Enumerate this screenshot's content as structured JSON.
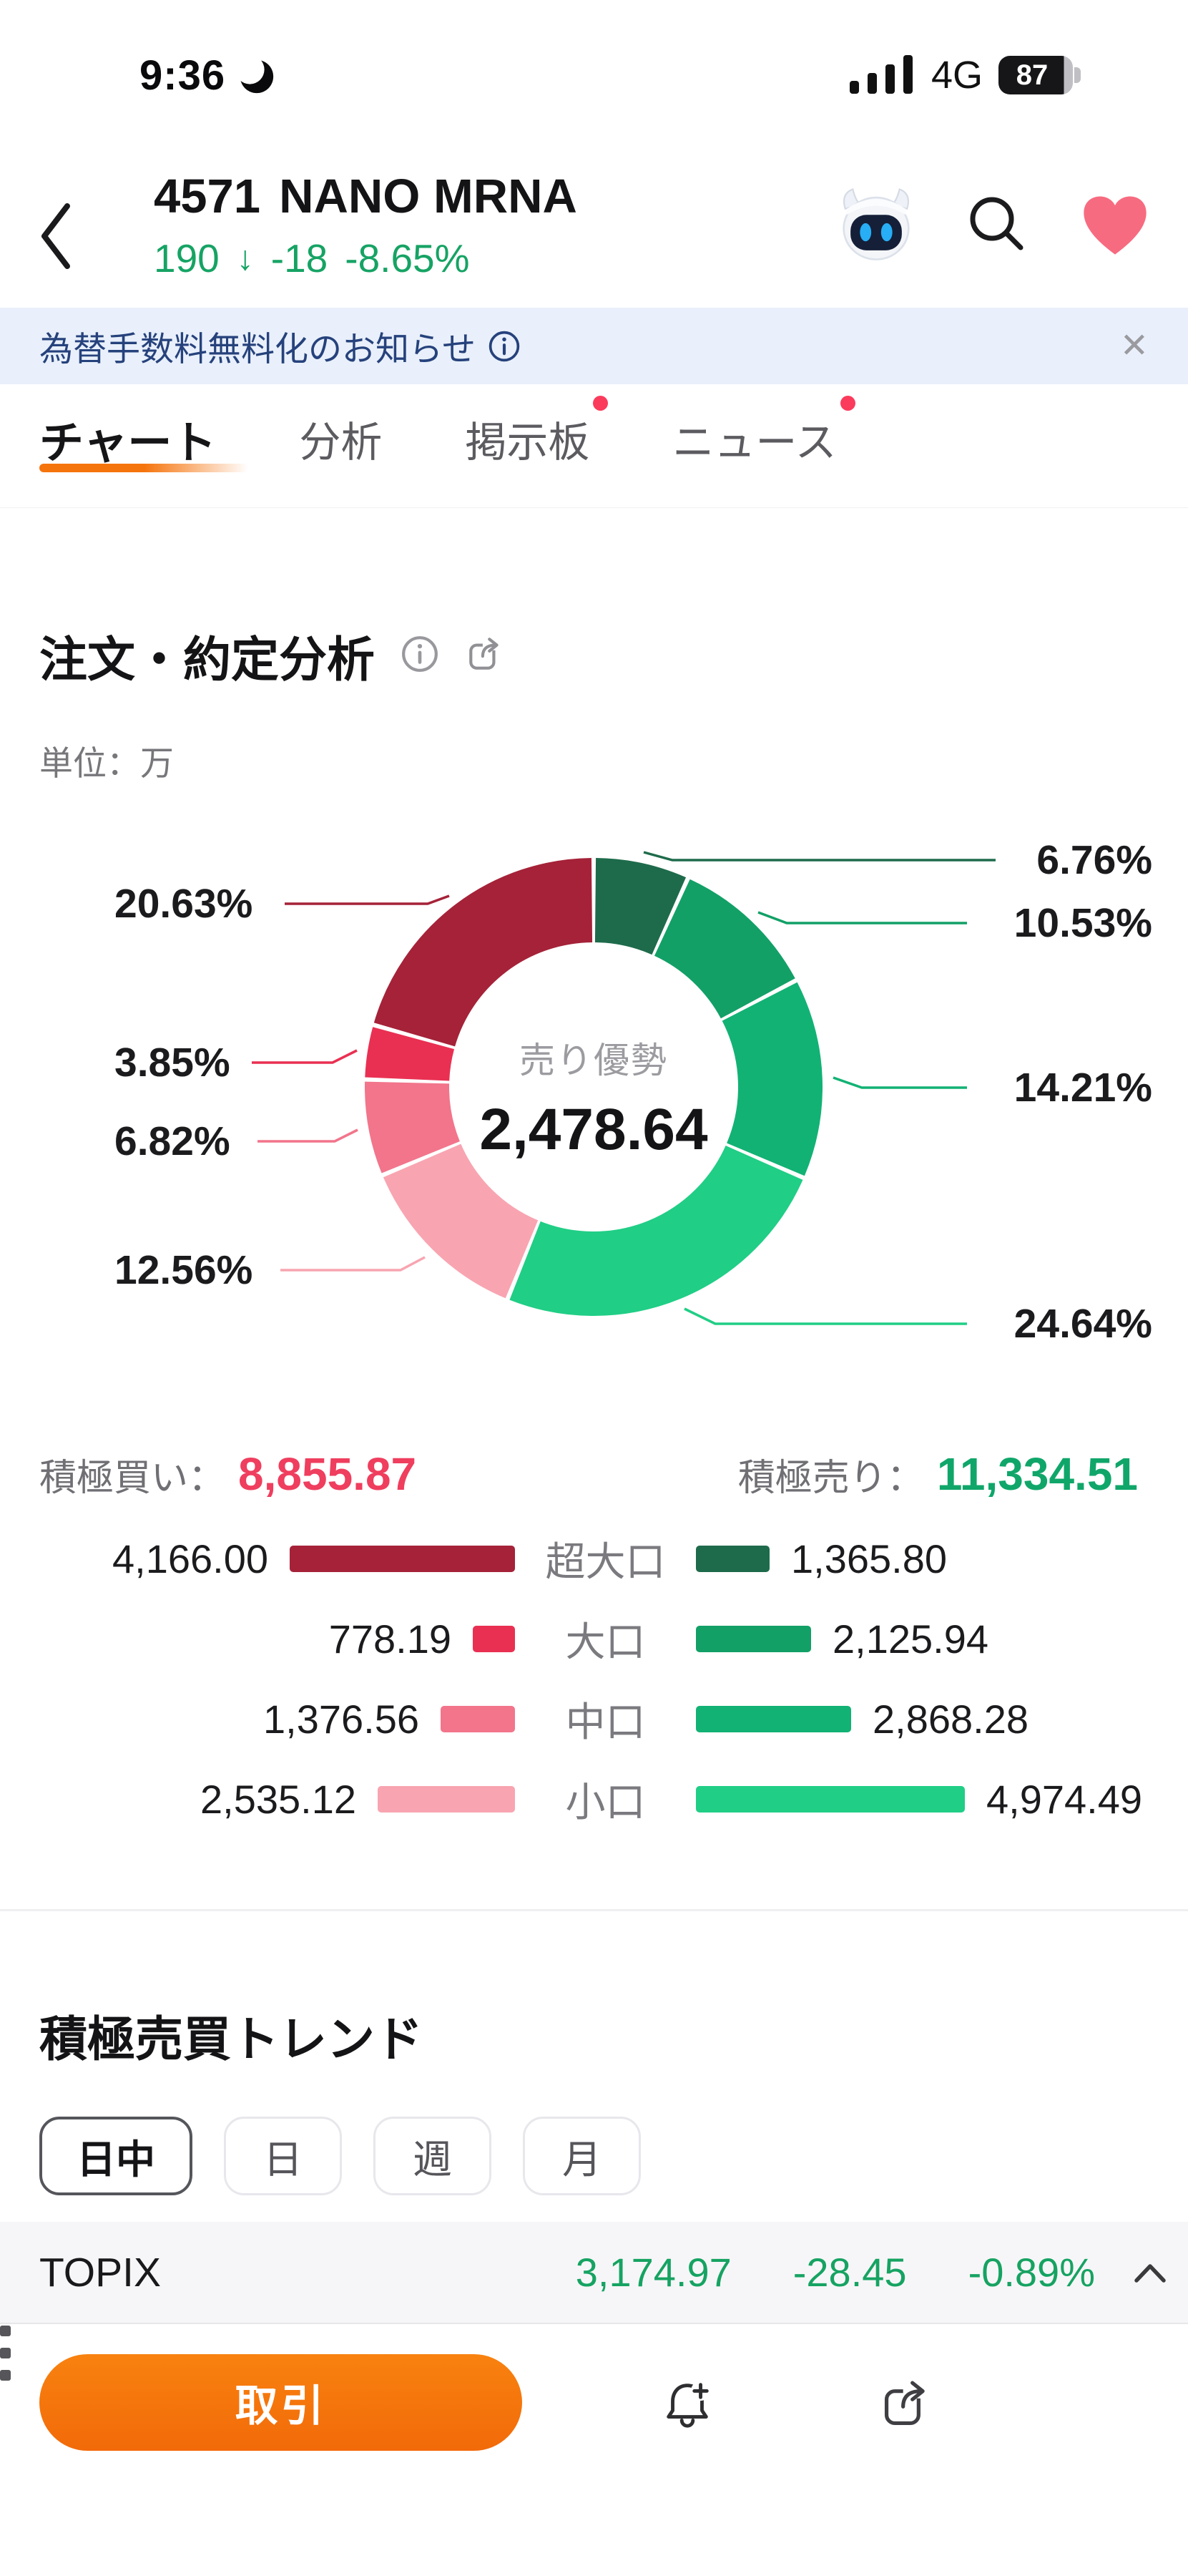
{
  "status_bar": {
    "time": "9:36",
    "network": "4G",
    "battery_pct": "87"
  },
  "header": {
    "code": "4571",
    "name": "NANO MRNA",
    "price": "190",
    "arrow": "↓",
    "change": "-18",
    "change_pct": "-8.65%"
  },
  "banner": {
    "text": "為替手数料無料化のお知らせ",
    "close": "✕"
  },
  "tabs": [
    {
      "label": "チャート",
      "active": true,
      "dot": false
    },
    {
      "label": "分析",
      "active": false,
      "dot": false
    },
    {
      "label": "掲示板",
      "active": false,
      "dot": true
    },
    {
      "label": "ニュース",
      "active": false,
      "dot": true
    }
  ],
  "analysis": {
    "title": "注文・約定分析",
    "unit": "単位：万",
    "buy_label": "積極買い：",
    "buy_total": "8,855.87",
    "sell_label": "積極売り：",
    "sell_total": "11,334.51"
  },
  "chart_data": {
    "type": "pie",
    "variant": "donut",
    "title": "注文・約定分析",
    "unit": "万",
    "center_label": "売り優勢",
    "center_value": "2,478.64",
    "start_angle_deg": -90,
    "direction": "clockwise",
    "segments": [
      {
        "name": "超大口売り",
        "pct": 6.76,
        "pct_label": "6.76%",
        "value": 1365.8,
        "color": "#1e6b4b"
      },
      {
        "name": "大口売り",
        "pct": 10.53,
        "pct_label": "10.53%",
        "value": 2125.94,
        "color": "#12a066"
      },
      {
        "name": "中口売り",
        "pct": 14.21,
        "pct_label": "14.21%",
        "value": 2868.28,
        "color": "#12b274"
      },
      {
        "name": "小口売り",
        "pct": 24.64,
        "pct_label": "24.64%",
        "value": 4974.49,
        "color": "#20ce85"
      },
      {
        "name": "小口買い",
        "pct": 12.56,
        "pct_label": "12.56%",
        "value": 2535.12,
        "color": "#f8a5b1"
      },
      {
        "name": "中口買い",
        "pct": 6.82,
        "pct_label": "6.82%",
        "value": 1376.56,
        "color": "#f2758b"
      },
      {
        "name": "大口買い",
        "pct": 3.85,
        "pct_label": "3.85%",
        "value": 778.19,
        "color": "#e93052"
      },
      {
        "name": "超大口買い",
        "pct": 20.63,
        "pct_label": "20.63%",
        "value": 4166.0,
        "color": "#a52238"
      }
    ]
  },
  "rows": [
    {
      "label": "超大口",
      "buy": "4,166.00",
      "buy_num": 4166.0,
      "buy_color": "#a52238",
      "sell": "1,365.80",
      "sell_num": 1365.8,
      "sell_color": "#1e6b4b"
    },
    {
      "label": "大口",
      "buy": "778.19",
      "buy_num": 778.19,
      "buy_color": "#e93052",
      "sell": "2,125.94",
      "sell_num": 2125.94,
      "sell_color": "#12a066"
    },
    {
      "label": "中口",
      "buy": "1,376.56",
      "buy_num": 1376.56,
      "buy_color": "#f2758b",
      "sell": "2,868.28",
      "sell_num": 2868.28,
      "sell_color": "#12b274"
    },
    {
      "label": "小口",
      "buy": "2,535.12",
      "buy_num": 2535.12,
      "buy_color": "#f8a5b1",
      "sell": "4,974.49",
      "sell_num": 4974.49,
      "sell_color": "#20ce85"
    }
  ],
  "trend": {
    "title": "積極売買トレンド",
    "periods": [
      {
        "label": "日中",
        "active": true
      },
      {
        "label": "日",
        "active": false
      },
      {
        "label": "週",
        "active": false
      },
      {
        "label": "月",
        "active": false
      }
    ]
  },
  "topix": {
    "label": "TOPIX",
    "value": "3,174.97",
    "change": "-28.45",
    "change_pct": "-0.89%"
  },
  "bottom_bar": {
    "trade_label": "取引"
  }
}
